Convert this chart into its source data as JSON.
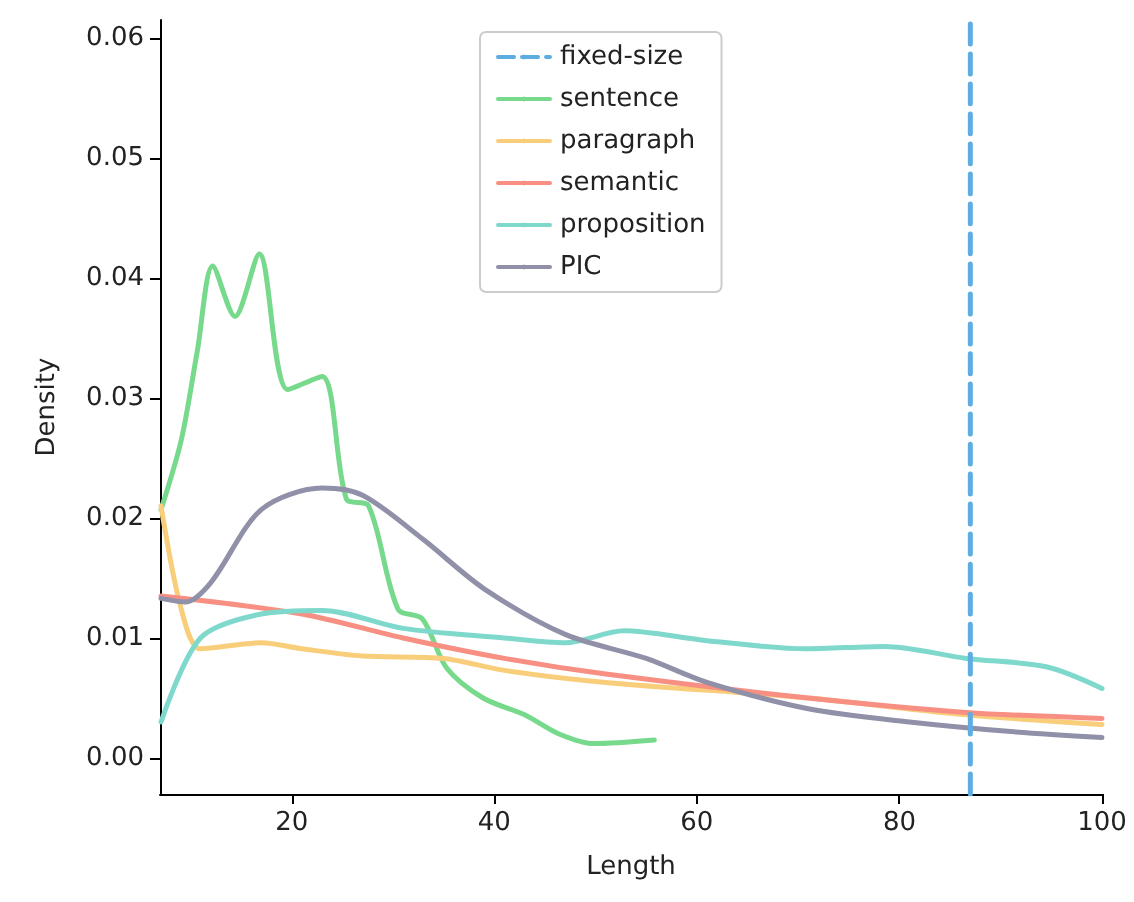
{
  "chart_data": {
    "type": "line",
    "xlabel": "Length",
    "ylabel": "Density",
    "xlim": [
      7,
      100
    ],
    "xticks": [
      20,
      40,
      60,
      80,
      100
    ],
    "ylim": [
      -0.003,
      0.0615
    ],
    "yticks": [
      {
        "value": 0,
        "label": "0.00"
      },
      {
        "value": 0.01,
        "label": "0.01"
      },
      {
        "value": 0.02,
        "label": "0.02"
      },
      {
        "value": 0.03,
        "label": "0.03"
      },
      {
        "value": 0.04,
        "label": "0.04"
      },
      {
        "value": 0.05,
        "label": "0.05"
      },
      {
        "value": 0.06,
        "label": "0.06"
      }
    ],
    "grid": false,
    "legend": "top",
    "marker": "none",
    "series": [
      {
        "name": "fixed-size",
        "color": "#5dade2",
        "line_style": "dashed",
        "x": [
          87,
          87
        ],
        "values": [
          -0.003,
          0.0615
        ]
      },
      {
        "name": "sentence",
        "color": "#77d98b",
        "x": [
          7.1,
          9.1,
          10.7,
          12.2,
          14.4,
          16.8,
          19.6,
          23.0,
          25.4,
          27.6,
          30.5,
          32.9,
          35.3,
          38.9,
          43,
          46.4,
          49.8,
          55.8
        ],
        "values": [
          0.0207,
          0.0265,
          0.034,
          0.041,
          0.0368,
          0.042,
          0.0307,
          0.0318,
          0.0216,
          0.021,
          0.0124,
          0.0116,
          0.0075,
          0.005,
          0.0036,
          0.002,
          0.0012,
          0.0015
        ]
      },
      {
        "name": "paragraph",
        "color": "#f9ce7b",
        "x": [
          7.1,
          9.1,
          11,
          17,
          21,
          27,
          35,
          41,
          51,
          71,
          86.6,
          100
        ],
        "values": [
          0.021,
          0.0124,
          0.0091,
          0.0096,
          0.0091,
          0.0085,
          0.0083,
          0.0073,
          0.0063,
          0.005,
          0.0036,
          0.0028
        ]
      },
      {
        "name": "semantic",
        "color": "#f78f83",
        "x": [
          7.1,
          21,
          31,
          41,
          51,
          71,
          86.6,
          100
        ],
        "values": [
          0.0135,
          0.012,
          0.01,
          0.0083,
          0.007,
          0.005,
          0.0038,
          0.0033
        ]
      },
      {
        "name": "proposition",
        "color": "#7fd8cc",
        "x": [
          7.1,
          11,
          17,
          23,
          31,
          41,
          47,
          52.8,
          60.8,
          70.7,
          78.6,
          86.6,
          94.5,
          100
        ],
        "values": [
          0.003,
          0.01,
          0.012,
          0.0123,
          0.0108,
          0.01,
          0.0096,
          0.0106,
          0.0098,
          0.0091,
          0.0093,
          0.0083,
          0.0076,
          0.0058
        ]
      },
      {
        "name": "PIC",
        "color": "#9090a8",
        "x": [
          7.1,
          9.5,
          12,
          17,
          23,
          27,
          33,
          39,
          47,
          55,
          61,
          71,
          81,
          91,
          100
        ],
        "values": [
          0.0133,
          0.013,
          0.0146,
          0.0207,
          0.0225,
          0.0219,
          0.0182,
          0.0141,
          0.0103,
          0.0083,
          0.0063,
          0.0041,
          0.003,
          0.0022,
          0.0017
        ]
      }
    ]
  }
}
